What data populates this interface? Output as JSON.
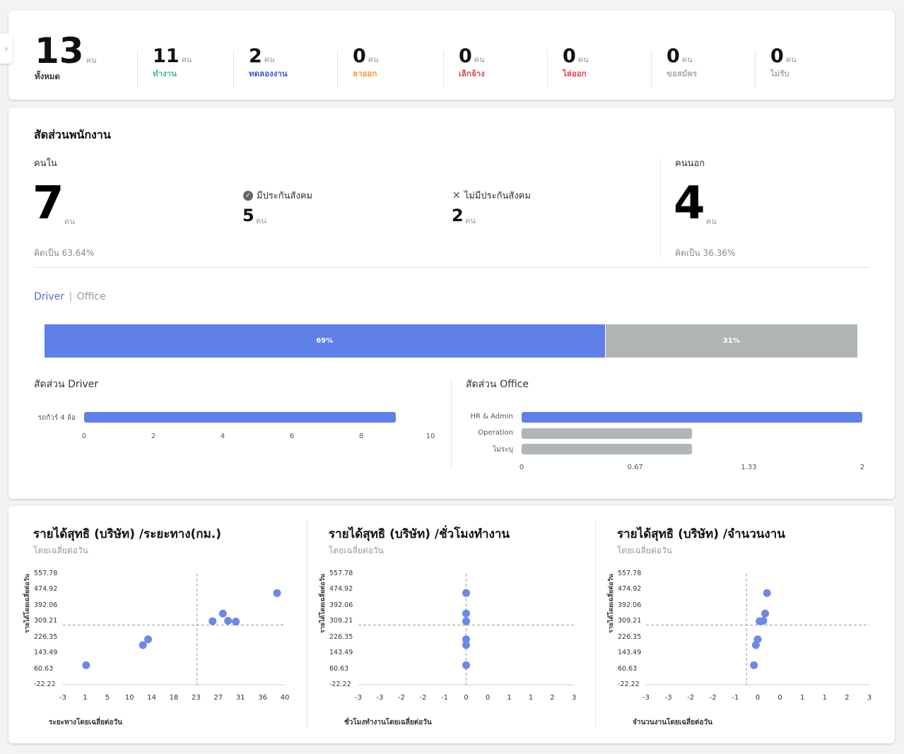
{
  "summary": [
    {
      "value": "13",
      "unit": "คน",
      "label": "ทั้งหมด",
      "color": "#333333"
    },
    {
      "value": "11",
      "unit": "คน",
      "label": "ทำงาน",
      "color": "#3dbf8a"
    },
    {
      "value": "2",
      "unit": "คน",
      "label": "ทดลองงาน",
      "color": "#3a57d6"
    },
    {
      "value": "0",
      "unit": "คน",
      "label": "ลาออก",
      "color": "#f39c2a"
    },
    {
      "value": "0",
      "unit": "คน",
      "label": "เลิกจ้าง",
      "color": "#e0474c"
    },
    {
      "value": "0",
      "unit": "คน",
      "label": "ไล่ออก",
      "color": "#e0474c"
    },
    {
      "value": "0",
      "unit": "คน",
      "label": "ขอสมัคร",
      "color": "#aaaaaa"
    },
    {
      "value": "0",
      "unit": "คน",
      "label": "ไม่รับ",
      "color": "#aaaaaa"
    }
  ],
  "ratio": {
    "title": "สัดส่วนพนักงาน",
    "inside": {
      "label": "คนใน",
      "value": "7",
      "unit": "คน",
      "percent_text": "คิดเป็น 63.64%"
    },
    "insured": {
      "label": "มีประกันสังคม",
      "value": "5",
      "unit": "คน"
    },
    "uninsured": {
      "label": "ไม่มีประกันสังคม",
      "value": "2",
      "unit": "คน"
    },
    "outside": {
      "label": "คนนอก",
      "value": "4",
      "unit": "คน",
      "percent_text": "คิดเป็น 36.36%"
    },
    "toggle": {
      "active": "Driver",
      "separator": "|",
      "inactive": "Office"
    },
    "split_bar": {
      "driver_fraction": 0.69,
      "driver_label": "69%",
      "office_label": "31%",
      "driver_color": "#5f7fe9",
      "office_color": "#b0b6b6"
    },
    "driver_chart_title": "สัดส่วน Driver",
    "office_chart_title": "สัดส่วน Office"
  },
  "scatter_titles": [
    {
      "title": "รายได้สุทธิ (บริษัท) /ระยะทาง(กม.)",
      "subtitle": "โดยเฉลี่ยต่อวัน",
      "xlabel": "ระยะทางโดยเฉลี่ยต่อวัน",
      "ylabel": "รายได้โดยเฉลี่ยต่อวัน"
    },
    {
      "title": "รายได้สุทธิ (บริษัท) /ชั่วโมงทำงาน",
      "subtitle": "โดยเฉลี่ยต่อวัน",
      "xlabel": "ชั่วโมงทำงานโดยเฉลี่ยต่อวัน",
      "ylabel": "รายได้โดยเฉลี่ยต่อวัน"
    },
    {
      "title": "รายได้สุทธิ (บริษัท) /จำนวนงาน",
      "subtitle": "โดยเฉลี่ยต่อวัน",
      "xlabel": "จำนวนงานโดยเฉลี่ยต่อวัน",
      "ylabel": "รายได้โดยเฉลี่ยต่อวัน"
    }
  ],
  "chart_data": [
    {
      "type": "bar",
      "orientation": "horizontal",
      "title": "สัดส่วน Driver",
      "categories": [
        "รถกัวร์ 4 ล้อ"
      ],
      "values": [
        9
      ],
      "xlim": [
        0,
        10
      ],
      "xticks": [
        "0",
        "2",
        "4",
        "6",
        "8",
        "10"
      ],
      "colors": [
        "#5f7fe9"
      ]
    },
    {
      "type": "bar",
      "orientation": "horizontal",
      "title": "สัดส่วน Office",
      "categories": [
        "HR & Admin",
        "Operation",
        "ไม่ระบุ"
      ],
      "values": [
        2,
        1,
        1
      ],
      "xlim": [
        0,
        2
      ],
      "xticks": [
        "0",
        "0.67",
        "1.33",
        "2"
      ],
      "colors": [
        "#5f7fe9",
        "#b0b6b6",
        "#b0b6b6"
      ]
    },
    {
      "type": "scatter",
      "title": "รายได้สุทธิ (บริษัท) /ระยะทาง(กม.)",
      "xlabel": "ระยะทางโดยเฉลี่ยต่อวัน",
      "ylabel": "รายได้โดยเฉลี่ยต่อวัน",
      "xlim": [
        -3,
        40
      ],
      "ylim": [
        -22.22,
        557.78
      ],
      "xticks": [
        "-3",
        "1",
        "5",
        "10",
        "14",
        "18",
        "23",
        "27",
        "31",
        "36",
        "40"
      ],
      "yticks": [
        "557.78",
        "474.92",
        "392.06",
        "309.21",
        "226.35",
        "143.49",
        "60.63",
        "-22.22"
      ],
      "mean_x": 23,
      "mean_y": 290,
      "points": [
        [
          1.5,
          80
        ],
        [
          12.5,
          185
        ],
        [
          13.5,
          215
        ],
        [
          26,
          310
        ],
        [
          28,
          350
        ],
        [
          29,
          312
        ],
        [
          30.5,
          308
        ],
        [
          38.5,
          457
        ]
      ]
    },
    {
      "type": "scatter",
      "title": "รายได้สุทธิ (บริษัท) /ชั่วโมงทำงาน",
      "xlabel": "ชั่วโมงทำงานโดยเฉลี่ยต่อวัน",
      "ylabel": "รายได้โดยเฉลี่ยต่อวัน",
      "xlim": [
        -3,
        3
      ],
      "ylim": [
        -22.22,
        557.78
      ],
      "xticks": [
        "-3",
        "-3",
        "-2",
        "-2",
        "-1",
        "0",
        "0",
        "1",
        "1",
        "2",
        "3"
      ],
      "yticks": [
        "557.78",
        "474.92",
        "392.06",
        "309.21",
        "226.35",
        "143.49",
        "60.63",
        "-22.22"
      ],
      "mean_x": 0,
      "mean_y": 290,
      "points": [
        [
          0,
          80
        ],
        [
          0,
          185
        ],
        [
          0,
          215
        ],
        [
          0,
          310
        ],
        [
          0,
          350
        ],
        [
          0,
          457
        ]
      ]
    },
    {
      "type": "scatter",
      "title": "รายได้สุทธิ (บริษัท) /จำนวนงาน",
      "xlabel": "จำนวนงานโดยเฉลี่ยต่อวัน",
      "ylabel": "รายได้โดยเฉลี่ยต่อวัน",
      "xlim": [
        -3,
        3
      ],
      "ylim": [
        -22.22,
        557.78
      ],
      "xticks": [
        "-3",
        "-3",
        "-2",
        "-2",
        "-1",
        "0",
        "0",
        "1",
        "1",
        "2",
        "3"
      ],
      "yticks": [
        "557.78",
        "474.92",
        "392.06",
        "309.21",
        "226.35",
        "143.49",
        "60.63",
        "-22.22"
      ],
      "mean_x": -0.3,
      "mean_y": 290,
      "points": [
        [
          -0.1,
          80
        ],
        [
          -0.05,
          185
        ],
        [
          0,
          215
        ],
        [
          0.05,
          310
        ],
        [
          0.15,
          312
        ],
        [
          0.2,
          350
        ],
        [
          0.25,
          457
        ]
      ]
    }
  ]
}
